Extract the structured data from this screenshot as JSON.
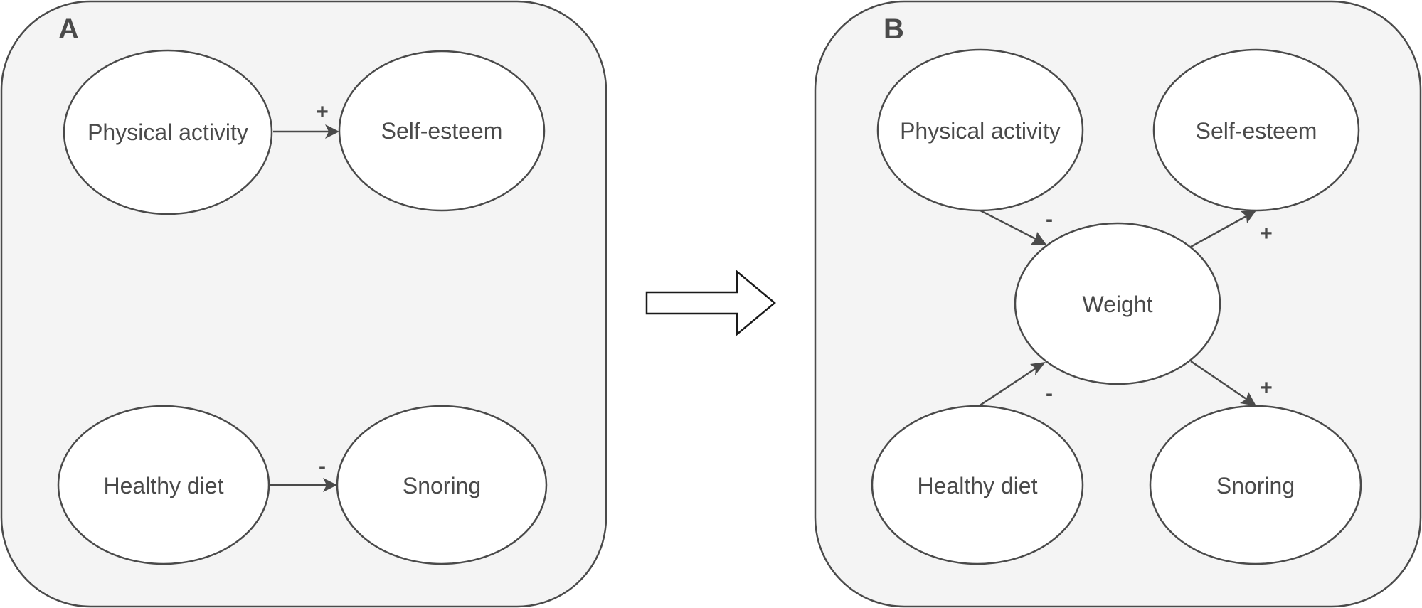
{
  "panels": {
    "a": {
      "letter": "A",
      "nodes": {
        "physical_activity": "Physical activity",
        "self_esteem": "Self-esteem",
        "healthy_diet": "Healthy diet",
        "snoring": "Snoring"
      },
      "edges": {
        "activity_to_self_esteem": {
          "sign": "+"
        },
        "diet_to_snoring": {
          "sign": "-"
        }
      }
    },
    "b": {
      "letter": "B",
      "nodes": {
        "physical_activity": "Physical activity",
        "self_esteem": "Self-esteem",
        "weight": "Weight",
        "healthy_diet": "Healthy diet",
        "snoring": "Snoring"
      },
      "edges": {
        "activity_to_weight": {
          "sign": "-"
        },
        "diet_to_weight": {
          "sign": "-"
        },
        "weight_to_self_esteem": {
          "sign": "+"
        },
        "weight_to_snoring": {
          "sign": "+"
        }
      }
    }
  },
  "colors": {
    "panel_fill": "#f4f4f4",
    "stroke": "#4a4a4a",
    "node_fill": "#ffffff",
    "transition_arrow_stroke": "#1a1a1a"
  },
  "icons": {
    "transition": "right-arrow-icon"
  }
}
